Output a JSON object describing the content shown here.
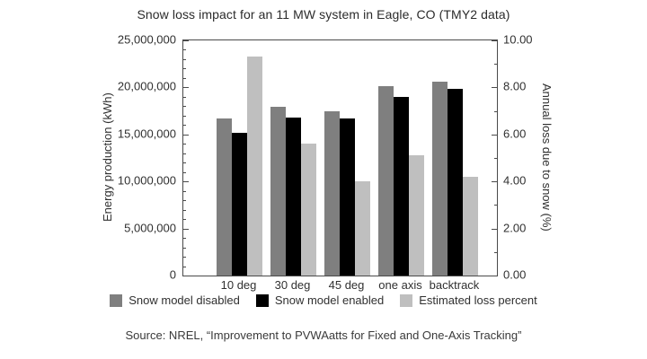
{
  "title": "Snow loss impact for an 11 MW system in Eagle, CO (TMY2 data)",
  "source": "Source: NREL, “Improvement to PVWAatts for Fixed and One-Axis Tracking”",
  "chart_data": {
    "type": "bar",
    "categories": [
      "10 deg",
      "30 deg",
      "45 deg",
      "one axis",
      "backtrack"
    ],
    "series": [
      {
        "name": "Snow model disabled",
        "axis": "left",
        "color": "#7f7f7f",
        "values": [
          16700000,
          17900000,
          17500000,
          20100000,
          20600000
        ]
      },
      {
        "name": "Snow model enabled",
        "axis": "left",
        "color": "#000000",
        "values": [
          15200000,
          16800000,
          16700000,
          19000000,
          19800000
        ]
      },
      {
        "name": "Estimated loss percent",
        "axis": "right",
        "color": "#bfbfbf",
        "values": [
          9.3,
          5.6,
          4.0,
          5.1,
          4.2
        ]
      }
    ],
    "left_axis": {
      "label": "Energy production (kWh)",
      "min": 0,
      "max": 25000000,
      "major_step": 5000000,
      "minor_step": 1000000,
      "tick_labels": [
        "0",
        "5,000,000",
        "10,000,000",
        "15,000,000",
        "20,000,000",
        "25,000,000"
      ]
    },
    "right_axis": {
      "label": "Annual loss due to snow (%)",
      "min": 0,
      "max": 10,
      "major_step": 2,
      "minor_step": 1,
      "tick_labels": [
        "0.00",
        "2.00",
        "4.00",
        "6.00",
        "8.00",
        "10.00"
      ]
    },
    "grid": false,
    "legend_position": "bottom"
  }
}
